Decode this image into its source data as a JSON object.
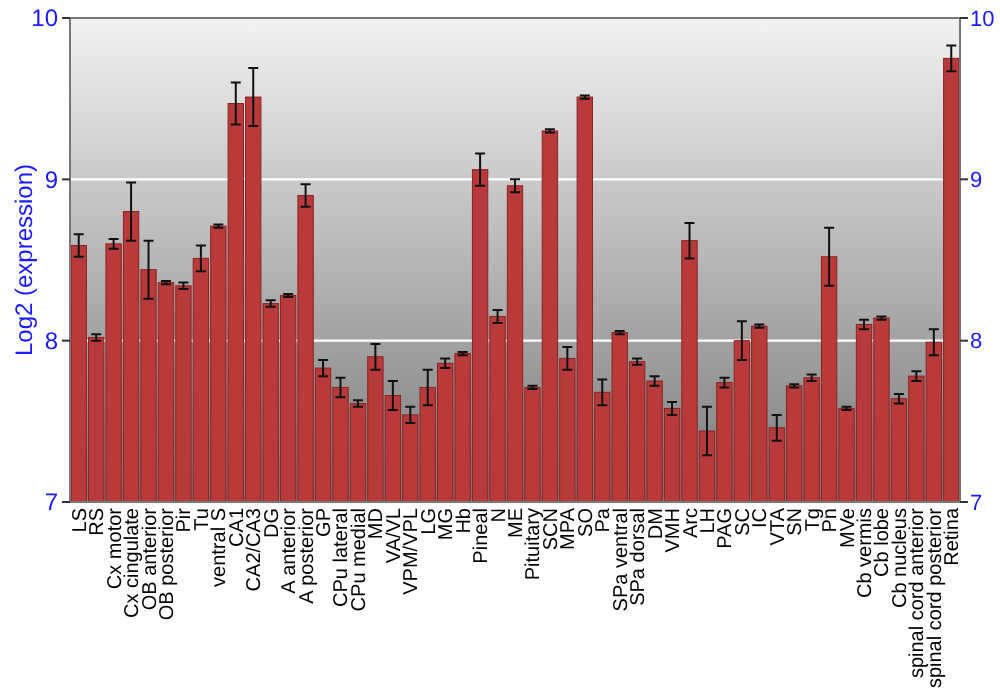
{
  "chart_data": {
    "type": "bar",
    "ylabel": "Log2 (expression)",
    "categories": [
      "LS",
      "RS",
      "Cx motor",
      "Cx cingulate",
      "OB anterior",
      "OB posterior",
      "Pir",
      "Tu",
      "ventral S",
      "CA1",
      "CA2/CA3",
      "DG",
      "A anterior",
      "A posterior",
      "GP",
      "CPu lateral",
      "CPu medial",
      "MD",
      "VA/VL",
      "VPM/VPL",
      "LG",
      "MG",
      "Hb",
      "Pineal",
      "N",
      "ME",
      "Pituitary",
      "SCN",
      "MPA",
      "SO",
      "Pa",
      "SPa ventral",
      "SPa dorsal",
      "DM",
      "VMH",
      "Arc",
      "LH",
      "PAG",
      "SC",
      "IC",
      "VTA",
      "SN",
      "Tg",
      "Pn",
      "MVe",
      "Cb vermis",
      "Cb lobe",
      "Cb nucleus",
      "spinal cord anterior",
      "spinal cord posterior",
      "Retina"
    ],
    "values": [
      8.59,
      8.02,
      8.6,
      8.8,
      8.44,
      8.36,
      8.34,
      8.51,
      8.71,
      9.47,
      9.51,
      8.23,
      8.28,
      8.9,
      7.83,
      7.71,
      7.61,
      7.9,
      7.66,
      7.54,
      7.71,
      7.86,
      7.92,
      9.06,
      8.15,
      8.96,
      7.71,
      9.3,
      7.89,
      9.51,
      7.68,
      8.05,
      7.87,
      7.75,
      7.58,
      8.62,
      7.44,
      7.74,
      8.0,
      8.09,
      7.46,
      7.72,
      7.77,
      8.52,
      7.58,
      8.1,
      8.14,
      7.64,
      7.78,
      7.99,
      9.75
    ],
    "errors": [
      0.07,
      0.02,
      0.03,
      0.18,
      0.18,
      0.01,
      0.02,
      0.08,
      0.01,
      0.13,
      0.18,
      0.02,
      0.01,
      0.07,
      0.05,
      0.06,
      0.02,
      0.08,
      0.09,
      0.05,
      0.11,
      0.03,
      0.01,
      0.1,
      0.04,
      0.04,
      0.01,
      0.01,
      0.07,
      0.01,
      0.08,
      0.01,
      0.02,
      0.03,
      0.04,
      0.11,
      0.15,
      0.03,
      0.12,
      0.01,
      0.08,
      0.01,
      0.02,
      0.18,
      0.01,
      0.03,
      0.01,
      0.03,
      0.03,
      0.08,
      0.08
    ],
    "color": "#b83a3a",
    "ylim": [
      7,
      10
    ],
    "yticks": [
      7,
      8,
      9,
      10
    ],
    "y2lim": [
      7,
      10
    ],
    "y2ticks": [
      7,
      8,
      9,
      10
    ],
    "grid": "y"
  }
}
